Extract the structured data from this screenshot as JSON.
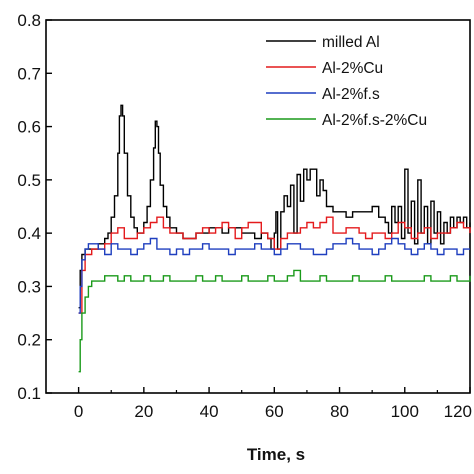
{
  "chart_data": {
    "type": "line",
    "title": "",
    "xlabel": "Time, s",
    "ylabel": "",
    "xlim": [
      -10,
      120
    ],
    "ylim": [
      0.1,
      0.8
    ],
    "x_ticks": [
      0,
      20,
      40,
      60,
      80,
      100,
      120
    ],
    "x_tick_labels": [
      "0",
      "20",
      "40",
      "60",
      "80",
      "100",
      "120"
    ],
    "y_ticks": [
      0.1,
      0.2,
      0.3,
      0.4,
      0.5,
      0.6,
      0.7,
      0.8
    ],
    "y_tick_labels": [
      "0.1",
      "0.2",
      "0.3",
      "0.4",
      "0.5",
      "0.6",
      "0.7",
      "0.8"
    ],
    "grid": false,
    "legend_position": "top-right",
    "series": [
      {
        "name": "milled Al",
        "color": "#000000",
        "x": [
          0,
          0.5,
          1,
          2,
          3,
          4,
          5,
          6,
          7,
          8,
          9,
          10,
          11,
          12,
          12.5,
          13,
          13.5,
          14,
          15,
          16,
          17,
          18,
          19,
          20,
          21,
          22,
          23,
          23.5,
          24,
          24.5,
          25,
          26,
          27,
          28,
          30,
          32,
          34,
          36,
          38,
          40,
          42,
          44,
          46,
          48,
          50,
          52,
          54,
          56,
          58,
          59,
          60,
          60.5,
          61,
          62,
          63,
          64,
          65,
          66,
          67,
          68,
          69,
          70,
          71,
          72,
          73,
          74,
          75,
          76,
          78,
          80,
          82,
          84,
          86,
          88,
          90,
          92,
          94,
          95,
          96,
          97,
          98,
          99,
          100,
          101,
          102,
          103,
          104,
          105,
          106,
          107,
          108,
          109,
          110,
          111,
          112,
          113,
          114,
          115,
          116,
          117,
          118,
          119,
          120
        ],
        "y": [
          0.26,
          0.33,
          0.36,
          0.37,
          0.37,
          0.37,
          0.37,
          0.38,
          0.38,
          0.39,
          0.4,
          0.43,
          0.47,
          0.55,
          0.62,
          0.64,
          0.62,
          0.55,
          0.47,
          0.43,
          0.41,
          0.4,
          0.4,
          0.42,
          0.45,
          0.5,
          0.56,
          0.61,
          0.6,
          0.55,
          0.49,
          0.45,
          0.43,
          0.41,
          0.4,
          0.39,
          0.39,
          0.4,
          0.4,
          0.41,
          0.41,
          0.4,
          0.41,
          0.41,
          0.4,
          0.4,
          0.39,
          0.4,
          0.39,
          0.37,
          0.4,
          0.44,
          0.37,
          0.44,
          0.47,
          0.45,
          0.49,
          0.4,
          0.51,
          0.46,
          0.52,
          0.5,
          0.52,
          0.52,
          0.47,
          0.5,
          0.48,
          0.45,
          0.44,
          0.44,
          0.43,
          0.44,
          0.44,
          0.44,
          0.45,
          0.43,
          0.42,
          0.4,
          0.45,
          0.42,
          0.45,
          0.39,
          0.52,
          0.4,
          0.46,
          0.38,
          0.5,
          0.4,
          0.45,
          0.38,
          0.46,
          0.4,
          0.44,
          0.38,
          0.42,
          0.4,
          0.43,
          0.41,
          0.43,
          0.42,
          0.43,
          0.41,
          0.42
        ]
      },
      {
        "name": "Al-2%Cu",
        "color": "#e41a1c",
        "x": [
          0,
          1,
          2,
          4,
          6,
          8,
          10,
          12,
          14,
          16,
          18,
          20,
          22,
          24,
          26,
          28,
          30,
          32,
          34,
          36,
          38,
          40,
          42,
          44,
          46,
          48,
          50,
          52,
          54,
          56,
          58,
          60,
          62,
          64,
          66,
          68,
          70,
          72,
          74,
          76,
          78,
          80,
          82,
          84,
          86,
          88,
          90,
          92,
          94,
          96,
          98,
          100,
          102,
          104,
          106,
          108,
          110,
          112,
          114,
          116,
          118,
          120
        ],
        "y": [
          0.25,
          0.33,
          0.36,
          0.37,
          0.37,
          0.38,
          0.4,
          0.41,
          0.39,
          0.39,
          0.4,
          0.41,
          0.42,
          0.43,
          0.41,
          0.4,
          0.4,
          0.39,
          0.39,
          0.4,
          0.41,
          0.4,
          0.41,
          0.42,
          0.41,
          0.39,
          0.41,
          0.42,
          0.42,
          0.4,
          0.39,
          0.37,
          0.39,
          0.4,
          0.4,
          0.41,
          0.42,
          0.41,
          0.42,
          0.43,
          0.4,
          0.4,
          0.41,
          0.41,
          0.4,
          0.39,
          0.4,
          0.4,
          0.39,
          0.4,
          0.42,
          0.41,
          0.39,
          0.4,
          0.41,
          0.39,
          0.4,
          0.4,
          0.41,
          0.42,
          0.41,
          0.4
        ]
      },
      {
        "name": "Al-2%f.s",
        "color": "#1f3fbf",
        "x": [
          0,
          0.5,
          1,
          2,
          3,
          4,
          6,
          8,
          10,
          12,
          14,
          16,
          18,
          20,
          22,
          24,
          26,
          28,
          30,
          32,
          34,
          36,
          38,
          40,
          42,
          44,
          46,
          48,
          50,
          52,
          54,
          56,
          58,
          60,
          62,
          64,
          66,
          68,
          70,
          72,
          74,
          76,
          78,
          80,
          82,
          84,
          86,
          88,
          90,
          92,
          94,
          96,
          98,
          100,
          102,
          104,
          106,
          108,
          110,
          112,
          114,
          116,
          118,
          120
        ],
        "y": [
          0.25,
          0.3,
          0.35,
          0.37,
          0.38,
          0.38,
          0.37,
          0.36,
          0.38,
          0.37,
          0.37,
          0.36,
          0.37,
          0.38,
          0.39,
          0.37,
          0.37,
          0.36,
          0.37,
          0.36,
          0.37,
          0.37,
          0.38,
          0.37,
          0.37,
          0.37,
          0.36,
          0.37,
          0.37,
          0.37,
          0.38,
          0.37,
          0.37,
          0.36,
          0.37,
          0.38,
          0.38,
          0.37,
          0.37,
          0.36,
          0.36,
          0.37,
          0.38,
          0.38,
          0.39,
          0.38,
          0.37,
          0.37,
          0.36,
          0.37,
          0.38,
          0.39,
          0.38,
          0.37,
          0.36,
          0.37,
          0.38,
          0.37,
          0.36,
          0.37,
          0.37,
          0.36,
          0.37,
          0.37
        ]
      },
      {
        "name": "Al-2%f.s-2%Cu",
        "color": "#1a9a1a",
        "x": [
          0,
          0.5,
          1,
          2,
          3,
          4,
          6,
          8,
          10,
          12,
          14,
          16,
          18,
          20,
          22,
          24,
          26,
          28,
          30,
          32,
          34,
          36,
          38,
          40,
          42,
          44,
          46,
          48,
          50,
          52,
          54,
          56,
          58,
          60,
          62,
          64,
          66,
          68,
          70,
          72,
          74,
          76,
          78,
          80,
          82,
          84,
          86,
          88,
          90,
          92,
          94,
          96,
          98,
          100,
          102,
          104,
          106,
          108,
          110,
          112,
          114,
          116,
          118,
          120
        ],
        "y": [
          0.14,
          0.2,
          0.25,
          0.28,
          0.3,
          0.31,
          0.31,
          0.32,
          0.32,
          0.31,
          0.32,
          0.31,
          0.31,
          0.32,
          0.31,
          0.31,
          0.32,
          0.31,
          0.31,
          0.31,
          0.31,
          0.32,
          0.31,
          0.31,
          0.32,
          0.31,
          0.31,
          0.31,
          0.32,
          0.31,
          0.31,
          0.31,
          0.32,
          0.31,
          0.31,
          0.32,
          0.33,
          0.31,
          0.31,
          0.31,
          0.32,
          0.31,
          0.31,
          0.31,
          0.31,
          0.32,
          0.31,
          0.31,
          0.31,
          0.31,
          0.32,
          0.31,
          0.31,
          0.31,
          0.31,
          0.31,
          0.32,
          0.31,
          0.31,
          0.31,
          0.32,
          0.31,
          0.31,
          0.32
        ]
      }
    ]
  }
}
